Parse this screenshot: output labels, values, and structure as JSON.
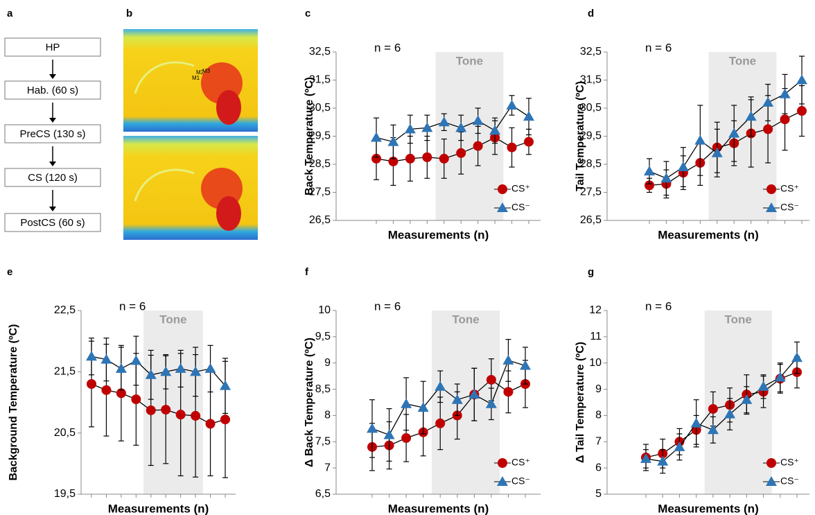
{
  "flow": {
    "panel_label": "a",
    "steps": [
      "HP",
      "Hab. (60 s)",
      "PreCS (130 s)",
      "CS (120 s)",
      "PostCS (60 s)"
    ]
  },
  "thermal_images": {
    "panel_label": "b",
    "markers": [
      "M1",
      "M2",
      "M3"
    ]
  },
  "chart_data": [
    {
      "type": "line",
      "panel_label": "c",
      "ylabel": "Back Temperature (ºC)",
      "xlabel": "Measurements (n)",
      "annotation": "n = 6",
      "tone_label": "Tone",
      "tone_range": [
        4,
        7
      ],
      "legend": "lower right",
      "categories": [
        null,
        null,
        null,
        null,
        null,
        null,
        null,
        null,
        null,
        null
      ],
      "ylim": [
        26.5,
        32.5
      ],
      "yticks": [
        {
          "value": 26.5,
          "label": "26,5"
        },
        {
          "value": 27.5,
          "label": "27,5"
        },
        {
          "value": 28.5,
          "label": "28,5"
        },
        {
          "value": 29.5,
          "label": "29,5"
        },
        {
          "value": 30.5,
          "label": "30,5"
        },
        {
          "value": 31.5,
          "label": "31,5"
        },
        {
          "value": 32.5,
          "label": "32,5"
        }
      ],
      "series": [
        {
          "name": "CS⁺",
          "color": "#c00000",
          "marker": "circle",
          "values": [
            28.7,
            28.6,
            28.7,
            28.75,
            28.7,
            28.9,
            29.15,
            29.45,
            29.1,
            29.3
          ],
          "errors": [
            0.75,
            0.85,
            0.8,
            0.75,
            0.7,
            0.75,
            0.7,
            0.6,
            0.7,
            0.45
          ]
        },
        {
          "name": "CS⁻",
          "color": "#2e75b6",
          "marker": "triangle",
          "values": [
            29.45,
            29.3,
            29.75,
            29.8,
            30.0,
            29.8,
            30.05,
            29.7,
            30.6,
            30.2
          ],
          "errors": [
            0.7,
            0.6,
            0.5,
            0.45,
            0.3,
            0.45,
            0.45,
            0.45,
            0.35,
            0.65
          ]
        }
      ]
    },
    {
      "type": "line",
      "panel_label": "d",
      "ylabel": "Tail Temperature (ºC)",
      "xlabel": "Measurements (n)",
      "annotation": "n = 6",
      "tone_label": "Tone",
      "tone_range": [
        4,
        7
      ],
      "legend": "lower right",
      "categories": [
        null,
        null,
        null,
        null,
        null,
        null,
        null,
        null,
        null,
        null
      ],
      "ylim": [
        26.5,
        32.5
      ],
      "yticks": [
        {
          "value": 26.5,
          "label": "26,5"
        },
        {
          "value": 27.5,
          "label": "27,5"
        },
        {
          "value": 28.5,
          "label": "28,5"
        },
        {
          "value": 29.5,
          "label": "29,5"
        },
        {
          "value": 30.5,
          "label": "30,5"
        },
        {
          "value": 31.5,
          "label": "31,5"
        },
        {
          "value": 32.5,
          "label": "32,5"
        }
      ],
      "series": [
        {
          "name": "CS⁺",
          "color": "#c00000",
          "marker": "circle",
          "values": [
            27.75,
            27.8,
            28.2,
            28.55,
            29.1,
            29.25,
            29.6,
            29.75,
            30.1,
            30.4
          ],
          "errors": [
            0.25,
            0.5,
            0.6,
            0.8,
            0.9,
            0.8,
            1.2,
            1.2,
            1.1,
            0.9
          ]
        },
        {
          "name": "CS⁻",
          "color": "#2e75b6",
          "marker": "triangle",
          "values": [
            28.25,
            28.0,
            28.4,
            29.35,
            28.9,
            29.6,
            30.2,
            30.7,
            31.0,
            31.5
          ],
          "errors": [
            0.45,
            0.6,
            0.7,
            1.25,
            0.85,
            1.0,
            0.7,
            0.65,
            0.7,
            0.85
          ]
        }
      ]
    },
    {
      "type": "line",
      "panel_label": "e",
      "ylabel": "Background Temperature (ºC)",
      "xlabel": "Measurements (n)",
      "annotation": "n = 6",
      "tone_label": "Tone",
      "tone_range": [
        4,
        7
      ],
      "legend": "none",
      "categories": [
        null,
        null,
        null,
        null,
        null,
        null,
        null,
        null,
        null,
        null
      ],
      "ylim": [
        19.5,
        22.5
      ],
      "yticks": [
        {
          "value": 19.5,
          "label": "19,5"
        },
        {
          "value": 20.5,
          "label": "20,5"
        },
        {
          "value": 21.5,
          "label": "21,5"
        },
        {
          "value": 22.5,
          "label": "22,5"
        }
      ],
      "series": [
        {
          "name": "CS⁺",
          "color": "#c00000",
          "marker": "circle",
          "values": [
            21.3,
            21.2,
            21.15,
            21.05,
            20.87,
            20.88,
            20.8,
            20.78,
            20.65,
            20.72
          ],
          "errors": [
            0.7,
            0.75,
            0.78,
            0.75,
            0.9,
            0.88,
            1.0,
            1.0,
            0.85,
            0.95
          ]
        },
        {
          "name": "CS⁻",
          "color": "#2e75b6",
          "marker": "triangle",
          "values": [
            21.75,
            21.7,
            21.55,
            21.68,
            21.45,
            21.5,
            21.55,
            21.5,
            21.55,
            21.27
          ],
          "errors": [
            0.3,
            0.35,
            0.35,
            0.4,
            0.4,
            0.28,
            0.3,
            0.4,
            0.38,
            0.45
          ]
        }
      ]
    },
    {
      "type": "line",
      "panel_label": "f",
      "ylabel": "Δ Back Temperature (ºC)",
      "xlabel": "Measurements (n)",
      "annotation": "n = 6",
      "tone_label": "Tone",
      "tone_range": [
        4,
        7
      ],
      "legend": "lower right",
      "categories": [
        null,
        null,
        null,
        null,
        null,
        null,
        null,
        null,
        null,
        null
      ],
      "ylim": [
        6.5,
        10
      ],
      "yticks": [
        {
          "value": 6.5,
          "label": "6,5"
        },
        7,
        {
          "value": 7.5,
          "label": "7,5"
        },
        8,
        {
          "value": 8.5,
          "label": "8,5"
        },
        9,
        {
          "value": 9.5,
          "label": "9,5"
        },
        10
      ],
      "series": [
        {
          "name": "CS⁺",
          "color": "#c00000",
          "marker": "circle",
          "values": [
            7.4,
            7.43,
            7.57,
            7.68,
            7.85,
            8.0,
            8.4,
            8.68,
            8.45,
            8.6
          ],
          "errors": [
            0.45,
            0.45,
            0.45,
            0.45,
            0.5,
            0.45,
            0.5,
            0.4,
            0.4,
            0.45
          ]
        },
        {
          "name": "CS⁻",
          "color": "#2e75b6",
          "marker": "triangle",
          "values": [
            7.75,
            7.63,
            8.22,
            8.15,
            8.55,
            8.3,
            8.4,
            8.22,
            9.05,
            8.95
          ],
          "errors": [
            0.55,
            0.5,
            0.5,
            0.5,
            0.3,
            0.3,
            0.5,
            0.3,
            0.4,
            0.35
          ]
        }
      ]
    },
    {
      "type": "line",
      "panel_label": "g",
      "ylabel": "Δ Tail Temperature (ºC)",
      "xlabel": "Measurements (n)",
      "annotation": "n = 6",
      "tone_label": "Tone",
      "tone_range": [
        4,
        7
      ],
      "legend": "lower right",
      "categories": [
        null,
        null,
        null,
        null,
        null,
        null,
        null,
        null,
        null,
        null
      ],
      "ylim": [
        5,
        12
      ],
      "yticks": [
        5,
        6,
        7,
        8,
        9,
        10,
        11,
        12
      ],
      "series": [
        {
          "name": "CS⁺",
          "color": "#c00000",
          "marker": "circle",
          "values": [
            6.4,
            6.55,
            7.0,
            7.45,
            8.25,
            8.4,
            8.8,
            8.9,
            9.4,
            9.65
          ],
          "errors": [
            0.5,
            0.55,
            0.5,
            0.55,
            0.65,
            0.65,
            0.75,
            0.6,
            0.55,
            0.6
          ]
        },
        {
          "name": "CS⁻",
          "color": "#2e75b6",
          "marker": "triangle",
          "values": [
            6.35,
            6.25,
            6.8,
            7.7,
            7.45,
            8.05,
            8.6,
            9.1,
            9.45,
            10.2
          ],
          "errors": [
            0.35,
            0.45,
            0.5,
            0.9,
            0.5,
            0.6,
            0.5,
            0.45,
            0.55,
            0.6
          ]
        }
      ]
    }
  ]
}
